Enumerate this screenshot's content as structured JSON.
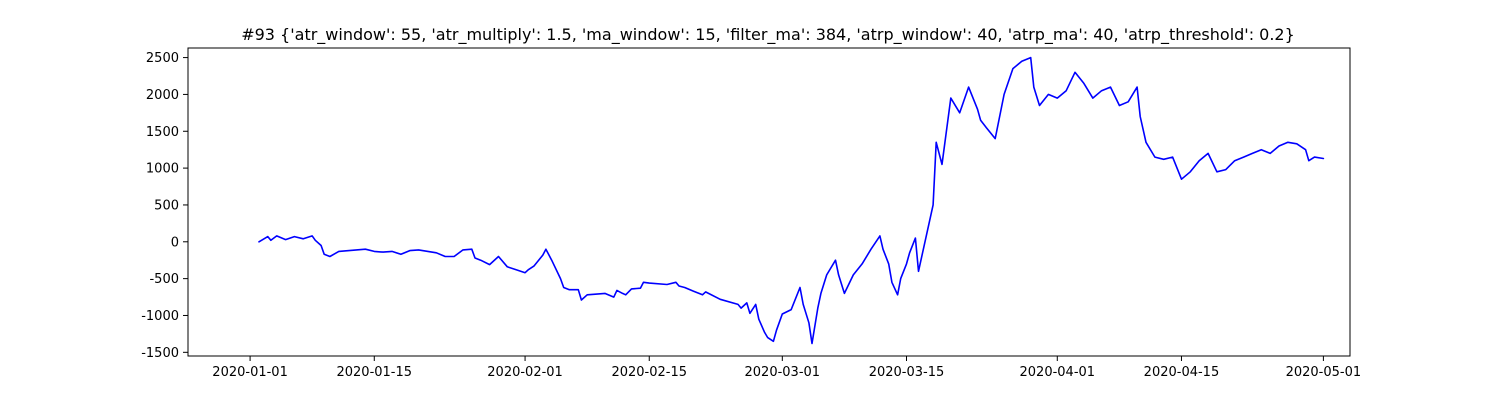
{
  "chart_data": {
    "type": "line",
    "title": "#93 {'atr_window': 55, 'atr_multiply': 1.5, 'ma_window': 15, 'filter_ma': 384, 'atrp_window': 40, 'atrp_ma': 40, 'atrp_threshold': 0.2}",
    "xlabel": "",
    "ylabel": "",
    "x_axis": {
      "type": "date",
      "range": [
        "2019-12-25",
        "2020-05-04"
      ],
      "ticks": [
        "2020-01-01",
        "2020-01-15",
        "2020-02-01",
        "2020-02-15",
        "2020-03-01",
        "2020-03-15",
        "2020-04-01",
        "2020-04-15",
        "2020-05-01"
      ]
    },
    "y_axis": {
      "range": [
        -1550,
        2630
      ],
      "ticks": [
        -1500,
        -1000,
        -500,
        0,
        500,
        1000,
        1500,
        2000,
        2500
      ]
    },
    "grid": false,
    "legend": "none",
    "series": [
      {
        "color": "#0000ff",
        "points": [
          [
            "2020-01-02",
            0
          ],
          [
            "2020-01-03",
            70
          ],
          [
            "2020-01-03",
            20
          ],
          [
            "2020-01-04",
            80
          ],
          [
            "2020-01-05",
            30
          ],
          [
            "2020-01-06",
            70
          ],
          [
            "2020-01-07",
            40
          ],
          [
            "2020-01-08",
            80
          ],
          [
            "2020-01-08",
            20
          ],
          [
            "2020-01-09",
            -50
          ],
          [
            "2020-01-09",
            -170
          ],
          [
            "2020-01-10",
            -200
          ],
          [
            "2020-01-11",
            -130
          ],
          [
            "2020-01-13",
            -110
          ],
          [
            "2020-01-14",
            -100
          ],
          [
            "2020-01-15",
            -130
          ],
          [
            "2020-01-16",
            -140
          ],
          [
            "2020-01-17",
            -130
          ],
          [
            "2020-01-18",
            -170
          ],
          [
            "2020-01-19",
            -120
          ],
          [
            "2020-01-20",
            -110
          ],
          [
            "2020-01-22",
            -150
          ],
          [
            "2020-01-23",
            -200
          ],
          [
            "2020-01-24",
            -200
          ],
          [
            "2020-01-25",
            -110
          ],
          [
            "2020-01-26",
            -100
          ],
          [
            "2020-01-26",
            -220
          ],
          [
            "2020-01-27",
            -250
          ],
          [
            "2020-01-28",
            -310
          ],
          [
            "2020-01-29",
            -200
          ],
          [
            "2020-01-30",
            -340
          ],
          [
            "2020-01-31",
            -380
          ],
          [
            "2020-02-01",
            -420
          ],
          [
            "2020-02-01",
            -380
          ],
          [
            "2020-02-02",
            -330
          ],
          [
            "2020-02-03",
            -180
          ],
          [
            "2020-02-03",
            -100
          ],
          [
            "2020-02-04",
            -250
          ],
          [
            "2020-02-05",
            -500
          ],
          [
            "2020-02-05",
            -620
          ],
          [
            "2020-02-06",
            -650
          ],
          [
            "2020-02-07",
            -650
          ],
          [
            "2020-02-07",
            -790
          ],
          [
            "2020-02-08",
            -720
          ],
          [
            "2020-02-10",
            -700
          ],
          [
            "2020-02-11",
            -750
          ],
          [
            "2020-02-11",
            -660
          ],
          [
            "2020-02-12",
            -700
          ],
          [
            "2020-02-12",
            -720
          ],
          [
            "2020-02-13",
            -640
          ],
          [
            "2020-02-14",
            -630
          ],
          [
            "2020-02-14",
            -550
          ],
          [
            "2020-02-15",
            -560
          ],
          [
            "2020-02-17",
            -580
          ],
          [
            "2020-02-18",
            -550
          ],
          [
            "2020-02-18",
            -600
          ],
          [
            "2020-02-19",
            -620
          ],
          [
            "2020-02-20",
            -670
          ],
          [
            "2020-02-21",
            -720
          ],
          [
            "2020-02-21",
            -680
          ],
          [
            "2020-02-23",
            -780
          ],
          [
            "2020-02-25",
            -850
          ],
          [
            "2020-02-25",
            -900
          ],
          [
            "2020-02-26",
            -830
          ],
          [
            "2020-02-26",
            -970
          ],
          [
            "2020-02-27",
            -850
          ],
          [
            "2020-02-27",
            -1050
          ],
          [
            "2020-02-28",
            -1230
          ],
          [
            "2020-02-28",
            -1300
          ],
          [
            "2020-02-29",
            -1350
          ],
          [
            "2020-02-29",
            -1200
          ],
          [
            "2020-03-01",
            -980
          ],
          [
            "2020-03-02",
            -920
          ],
          [
            "2020-03-03",
            -620
          ],
          [
            "2020-03-03",
            -850
          ],
          [
            "2020-03-04",
            -1100
          ],
          [
            "2020-03-04",
            -1380
          ],
          [
            "2020-03-05",
            -900
          ],
          [
            "2020-03-05",
            -700
          ],
          [
            "2020-03-06",
            -450
          ],
          [
            "2020-03-07",
            -250
          ],
          [
            "2020-03-07",
            -450
          ],
          [
            "2020-03-08",
            -700
          ],
          [
            "2020-03-09",
            -450
          ],
          [
            "2020-03-10",
            -300
          ],
          [
            "2020-03-11",
            -100
          ],
          [
            "2020-03-12",
            80
          ],
          [
            "2020-03-12",
            -100
          ],
          [
            "2020-03-13",
            -300
          ],
          [
            "2020-03-13",
            -550
          ],
          [
            "2020-03-14",
            -720
          ],
          [
            "2020-03-14",
            -500
          ],
          [
            "2020-03-15",
            -300
          ],
          [
            "2020-03-15",
            -150
          ],
          [
            "2020-03-16",
            50
          ],
          [
            "2020-03-16",
            -400
          ],
          [
            "2020-03-18",
            500
          ],
          [
            "2020-03-18",
            1350
          ],
          [
            "2020-03-19",
            1050
          ],
          [
            "2020-03-20",
            1950
          ],
          [
            "2020-03-21",
            1750
          ],
          [
            "2020-03-22",
            2100
          ],
          [
            "2020-03-23",
            1800
          ],
          [
            "2020-03-23",
            1650
          ],
          [
            "2020-03-24",
            1550
          ],
          [
            "2020-03-25",
            1400
          ],
          [
            "2020-03-26",
            2000
          ],
          [
            "2020-03-27",
            2350
          ],
          [
            "2020-03-28",
            2450
          ],
          [
            "2020-03-29",
            2500
          ],
          [
            "2020-03-29",
            2100
          ],
          [
            "2020-03-30",
            1850
          ],
          [
            "2020-03-31",
            2000
          ],
          [
            "2020-04-01",
            1950
          ],
          [
            "2020-04-02",
            2050
          ],
          [
            "2020-04-03",
            2300
          ],
          [
            "2020-04-04",
            2150
          ],
          [
            "2020-04-05",
            1950
          ],
          [
            "2020-04-06",
            2050
          ],
          [
            "2020-04-07",
            2100
          ],
          [
            "2020-04-08",
            1850
          ],
          [
            "2020-04-09",
            1900
          ],
          [
            "2020-04-10",
            2100
          ],
          [
            "2020-04-10",
            1700
          ],
          [
            "2020-04-11",
            1350
          ],
          [
            "2020-04-12",
            1150
          ],
          [
            "2020-04-13",
            1120
          ],
          [
            "2020-04-14",
            1150
          ],
          [
            "2020-04-15",
            850
          ],
          [
            "2020-04-16",
            950
          ],
          [
            "2020-04-17",
            1100
          ],
          [
            "2020-04-18",
            1200
          ],
          [
            "2020-04-19",
            950
          ],
          [
            "2020-04-20",
            980
          ],
          [
            "2020-04-21",
            1100
          ],
          [
            "2020-04-22",
            1150
          ],
          [
            "2020-04-23",
            1200
          ],
          [
            "2020-04-24",
            1250
          ],
          [
            "2020-04-25",
            1200
          ],
          [
            "2020-04-26",
            1300
          ],
          [
            "2020-04-27",
            1350
          ],
          [
            "2020-04-28",
            1330
          ],
          [
            "2020-04-29",
            1250
          ],
          [
            "2020-04-29",
            1100
          ],
          [
            "2020-04-30",
            1150
          ],
          [
            "2020-05-01",
            1130
          ]
        ]
      }
    ]
  }
}
